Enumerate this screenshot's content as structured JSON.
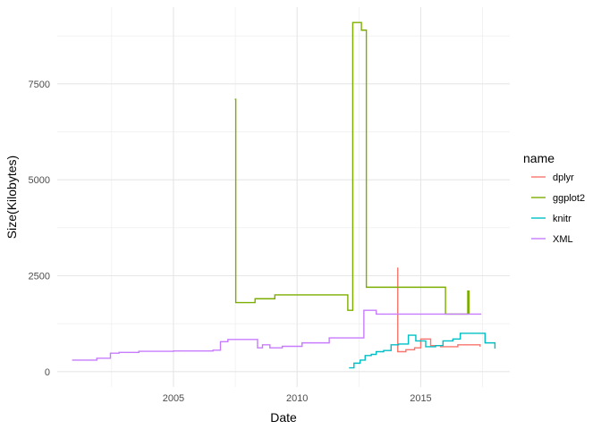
{
  "chart_data": {
    "type": "line",
    "step": true,
    "xlabel": "Date",
    "ylabel": "Size(Kilobytes)",
    "xlim": [
      2000.3,
      2018.6
    ],
    "ylim": [
      -400,
      9500
    ],
    "x_ticks": [
      2005,
      2010,
      2015
    ],
    "x_tick_labels": [
      "2005",
      "2010",
      "2015"
    ],
    "x_minor_ticks": [
      2002.5,
      2007.5,
      2012.5,
      2017.5
    ],
    "y_ticks": [
      0,
      2500,
      5000,
      7500
    ],
    "y_tick_labels": [
      "0",
      "2500",
      "5000",
      "7500"
    ],
    "y_minor_ticks": [
      1250,
      3750,
      6250,
      8750
    ],
    "grid": true,
    "legend": {
      "title": "name",
      "position": "right",
      "entries": [
        "dplyr",
        "ggplot2",
        "knitr",
        "XML"
      ]
    },
    "series": [
      {
        "name": "dplyr",
        "color": "#F8766D",
        "x": [
          2014.05,
          2014.07,
          2014.4,
          2014.75,
          2015.0,
          2015.4,
          2015.8,
          2016.5,
          2017.4
        ],
        "y": [
          2700,
          520,
          570,
          620,
          850,
          680,
          650,
          700,
          650
        ]
      },
      {
        "name": "ggplot2",
        "color": "#7CAE00",
        "x": [
          2007.48,
          2007.52,
          2008.3,
          2009.1,
          2012.05,
          2012.25,
          2012.6,
          2012.8,
          2016.0,
          2016.9,
          2016.95
        ],
        "y": [
          7100,
          1800,
          1900,
          2000,
          1600,
          9100,
          8900,
          2200,
          1500,
          2100,
          1500
        ]
      },
      {
        "name": "knitr",
        "color": "#00BFC4",
        "x": [
          2012.1,
          2012.3,
          2012.55,
          2012.75,
          2013.0,
          2013.2,
          2013.5,
          2013.8,
          2014.1,
          2014.5,
          2014.8,
          2015.2,
          2015.6,
          2015.9,
          2016.3,
          2016.6,
          2016.9,
          2017.6,
          2017.9,
          2018.0
        ],
        "y": [
          100,
          220,
          300,
          420,
          450,
          520,
          550,
          700,
          720,
          950,
          800,
          650,
          680,
          800,
          850,
          1000,
          1000,
          750,
          750,
          600
        ]
      },
      {
        "name": "XML",
        "color": "#C77CFF",
        "x": [
          2000.9,
          2001.9,
          2002.45,
          2002.8,
          2003.6,
          2005.0,
          2006.6,
          2006.9,
          2007.2,
          2008.4,
          2008.6,
          2008.9,
          2009.4,
          2010.2,
          2011.3,
          2012.7,
          2013.2,
          2017.45
        ],
        "y": [
          300,
          350,
          480,
          500,
          530,
          540,
          560,
          780,
          840,
          620,
          700,
          620,
          660,
          750,
          880,
          1600,
          1500,
          1500
        ]
      }
    ]
  }
}
